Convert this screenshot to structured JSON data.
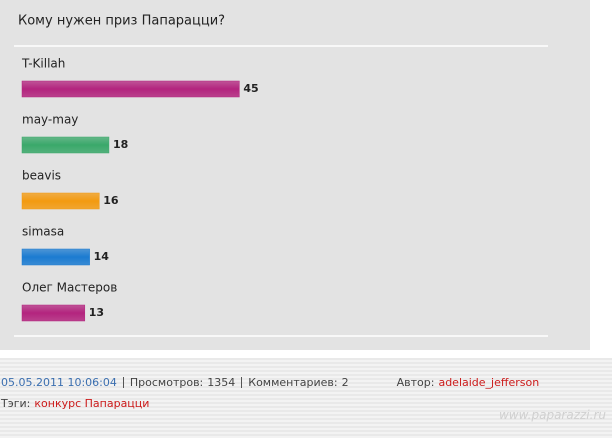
{
  "chart_data": {
    "type": "bar",
    "orientation": "horizontal",
    "title": "Кому нужен приз Папарацци?",
    "categories": [
      "T-Killah",
      "may-may",
      "beavis",
      "simasa",
      "Олег Мастеров"
    ],
    "values": [
      45,
      18,
      16,
      14,
      13
    ],
    "colors": [
      "#b3247e",
      "#3aa86a",
      "#f39a10",
      "#1b7bd1",
      "#b3247e"
    ]
  },
  "footer": {
    "date": "05.05.2011 10:06:04",
    "views_label": "Просмотров:",
    "views": 1354,
    "comments_label": "Комментариев:",
    "comments": 2,
    "author_label": "Автор:",
    "author": "adelaide_jefferson",
    "tags_label": "Тэги:",
    "tags": "конкурс Папарацци",
    "watermark": "www.paparazzi.ru"
  }
}
